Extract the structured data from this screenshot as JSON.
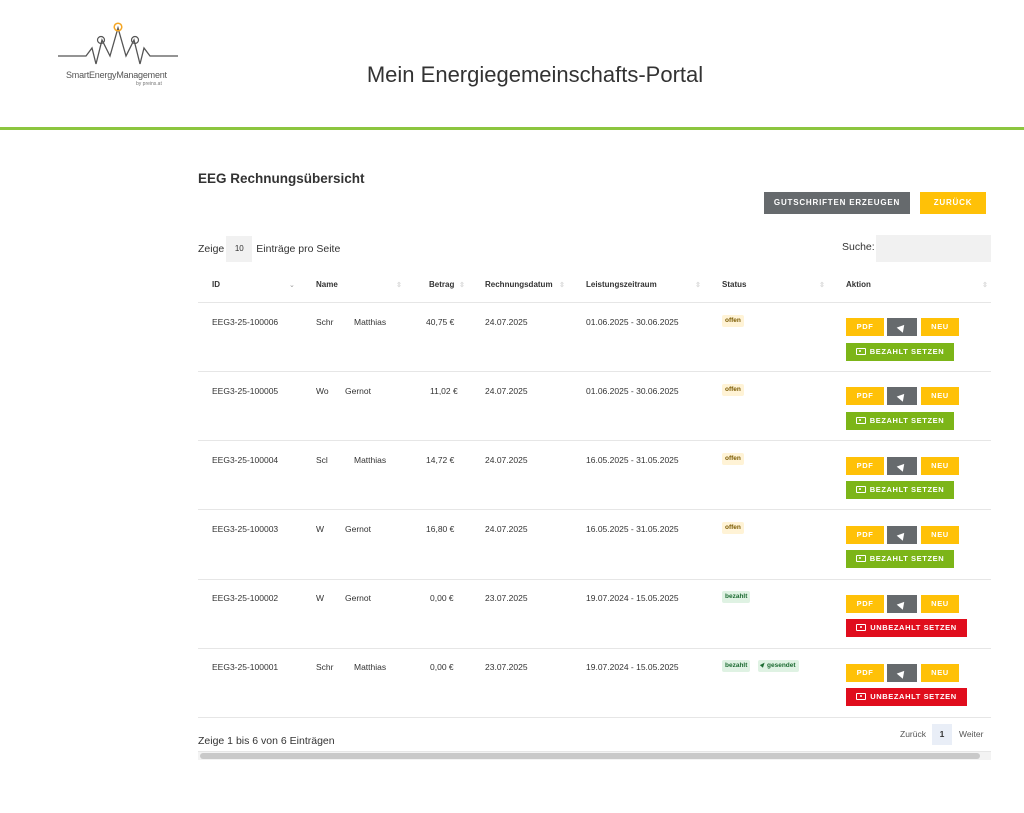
{
  "header": {
    "logo_text": "SmartEnergyManagement",
    "logo_sub": "by preins.at",
    "title": "Mein Energiegemeinschafts-Portal"
  },
  "page": {
    "section_title": "EEG Rechnungsübersicht",
    "btn_generate": "GUTSCHRIFTEN ERZEUGEN",
    "btn_back": "ZURÜCK"
  },
  "table_controls": {
    "show_label": "Zeige",
    "page_length": "10",
    "per_page_label": "Einträge pro Seite",
    "search_label": "Suche:",
    "search_value": ""
  },
  "columns": [
    "ID",
    "Name",
    "Betrag",
    "Rechnungsdatum",
    "Leistungszeitraum",
    "Status",
    "Aktion"
  ],
  "actions": {
    "pdf": "PDF",
    "neu": "NEU",
    "paid": "BEZAHLT SETZEN",
    "unpaid": "UNBEZAHLT SETZEN"
  },
  "rows": [
    {
      "id": "EEG3-25-100006",
      "last": "Schr",
      "first": "Matthias",
      "amount": "40,75 €",
      "date": "24.07.2025",
      "period": "01.06.2025 - 30.06.2025",
      "status": "offen",
      "sent": ""
    },
    {
      "id": "EEG3-25-100005",
      "last": "Wo",
      "first": "Gernot",
      "amount": "11,02 €",
      "date": "24.07.2025",
      "period": "01.06.2025 - 30.06.2025",
      "status": "offen",
      "sent": ""
    },
    {
      "id": "EEG3-25-100004",
      "last": "Scl",
      "first": "Matthias",
      "amount": "14,72 €",
      "date": "24.07.2025",
      "period": "16.05.2025 - 31.05.2025",
      "status": "offen",
      "sent": ""
    },
    {
      "id": "EEG3-25-100003",
      "last": "W",
      "first": "Gernot",
      "amount": "16,80 €",
      "date": "24.07.2025",
      "period": "16.05.2025 - 31.05.2025",
      "status": "offen",
      "sent": ""
    },
    {
      "id": "EEG3-25-100002",
      "last": "W",
      "first": "Gernot",
      "amount": "0,00 €",
      "date": "23.07.2025",
      "period": "19.07.2024 - 15.05.2025",
      "status": "bezahlt",
      "sent": ""
    },
    {
      "id": "EEG3-25-100001",
      "last": "Schr",
      "first": "Matthias",
      "amount": "0,00 €",
      "date": "23.07.2025",
      "period": "19.07.2024 - 15.05.2025",
      "status": "bezahlt",
      "sent": "gesendet"
    }
  ],
  "footer": {
    "info": "Zeige 1 bis 6 von 6 Einträgen",
    "prev": "Zurück",
    "current_page": "1",
    "next": "Weiter"
  },
  "colors": {
    "accent_green": "#8cc63f",
    "yellow": "#ffc107",
    "gray": "#666a6d",
    "paid_green": "#7cb518",
    "unpaid_red": "#e00d1d"
  },
  "icons": {
    "send": "paper-plane-icon",
    "money": "money-bill-icon",
    "sort": "sort-icon"
  }
}
